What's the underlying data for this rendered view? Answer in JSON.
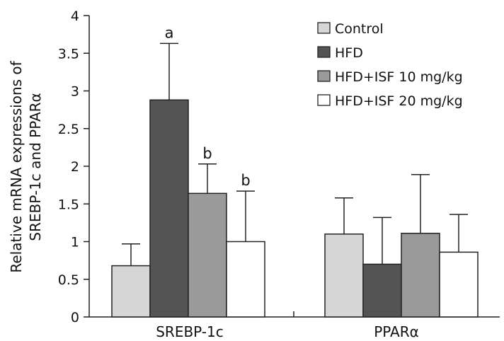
{
  "chart_data": {
    "type": "bar",
    "title": "",
    "xlabel": "",
    "ylabel_lines": [
      "Relative mRNA expressions of",
      "SREBP-1c and PPARα"
    ],
    "categories": [
      "SREBP-1c",
      "PPARα"
    ],
    "ylim": [
      0,
      4
    ],
    "yticks": [
      "0",
      "0.5",
      "1",
      "1.5",
      "2",
      "2.5",
      "3",
      "3.5",
      "4"
    ],
    "grid": false,
    "legend_position": "top-right",
    "series": [
      {
        "name": "Control",
        "color": "#d6d6d6",
        "values": [
          0.68,
          1.1
        ],
        "errors": [
          0.29,
          0.48
        ],
        "annotations": [
          "",
          ""
        ]
      },
      {
        "name": "HFD",
        "color": "#545454",
        "values": [
          2.88,
          0.7
        ],
        "errors": [
          0.75,
          0.62
        ],
        "annotations": [
          "a",
          ""
        ]
      },
      {
        "name": "HFD+ISF 10 mg/kg",
        "color": "#9a9a9a",
        "values": [
          1.64,
          1.11
        ],
        "errors": [
          0.39,
          0.78
        ],
        "annotations": [
          "b",
          ""
        ]
      },
      {
        "name": "HFD+ISF 20 mg/kg",
        "color": "#ffffff",
        "values": [
          1.0,
          0.86
        ],
        "errors": [
          0.67,
          0.5
        ],
        "annotations": [
          "b",
          ""
        ]
      }
    ]
  }
}
